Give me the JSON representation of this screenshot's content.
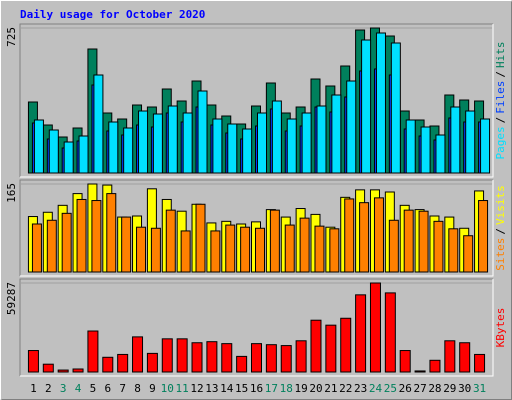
{
  "chart_data": [
    {
      "type": "bar",
      "title": "Daily usage for October 2020",
      "series": [
        {
          "name": "Hits",
          "color": "#00805c",
          "values": [
            355,
            240,
            180,
            225,
            620,
            300,
            270,
            340,
            330,
            420,
            360,
            460,
            340,
            285,
            245,
            335,
            450,
            300,
            330,
            470,
            435,
            535,
            715,
            725,
            685,
            310,
            265,
            235,
            390,
            365,
            360
          ]
        },
        {
          "name": "Files",
          "color": "#0040ff",
          "values": [
            250,
            170,
            125,
            160,
            440,
            210,
            190,
            240,
            230,
            300,
            255,
            330,
            240,
            200,
            170,
            235,
            320,
            210,
            235,
            330,
            305,
            380,
            510,
            520,
            490,
            220,
            185,
            165,
            275,
            255,
            255
          ]
        },
        {
          "name": "Pages",
          "color": "#00e0ff",
          "values": [
            265,
            215,
            155,
            185,
            490,
            255,
            225,
            310,
            295,
            335,
            300,
            410,
            270,
            245,
            220,
            300,
            360,
            270,
            300,
            335,
            390,
            460,
            665,
            700,
            650,
            265,
            230,
            190,
            330,
            310,
            270
          ]
        }
      ],
      "legend_separator": "/",
      "ylim": [
        0,
        725
      ],
      "yticks": [
        725
      ]
    },
    {
      "type": "bar",
      "series": [
        {
          "name": "Visits",
          "color": "#ffff00",
          "values": [
            104,
            112,
            125,
            147,
            165,
            163,
            103,
            105,
            156,
            136,
            114,
            127,
            92,
            95,
            90,
            94,
            117,
            103,
            119,
            108,
            84,
            140,
            154,
            154,
            150,
            125,
            117,
            105,
            103,
            82,
            152
          ]
        },
        {
          "name": "Sites",
          "color": "#ff8000",
          "values": [
            90,
            97,
            110,
            136,
            134,
            147,
            103,
            84,
            82,
            116,
            77,
            127,
            77,
            88,
            84,
            82,
            116,
            88,
            101,
            86,
            81,
            137,
            130,
            139,
            97,
            116,
            114,
            95,
            81,
            68,
            134
          ]
        }
      ],
      "legend_separator": "/",
      "ylim": [
        0,
        165
      ],
      "yticks": [
        165
      ]
    },
    {
      "type": "bar",
      "series": [
        {
          "name": "KBytes",
          "color": "#ff0000",
          "values": [
            14300,
            5200,
            1300,
            2000,
            27300,
            9800,
            11700,
            23400,
            12400,
            22100,
            22100,
            19500,
            20200,
            18900,
            10400,
            18900,
            18200,
            17600,
            20800,
            34500,
            31200,
            35800,
            51400,
            59287,
            52700,
            14300,
            700,
            7800,
            20800,
            19500,
            11700
          ]
        }
      ],
      "ylim": [
        0,
        59287
      ],
      "yticks": [
        59287
      ],
      "categories": [
        "1",
        "2",
        "3",
        "4",
        "5",
        "6",
        "7",
        "8",
        "9",
        "10",
        "11",
        "12",
        "13",
        "14",
        "15",
        "16",
        "17",
        "18",
        "19",
        "20",
        "21",
        "22",
        "23",
        "24",
        "25",
        "26",
        "27",
        "28",
        "29",
        "30",
        "31"
      ],
      "category_colors": [
        "#000000",
        "#000000",
        "#00805c",
        "#00805c",
        "#000000",
        "#000000",
        "#000000",
        "#000000",
        "#000000",
        "#00805c",
        "#00805c",
        "#000000",
        "#000000",
        "#000000",
        "#000000",
        "#000000",
        "#00805c",
        "#00805c",
        "#000000",
        "#000000",
        "#000000",
        "#000000",
        "#000000",
        "#00805c",
        "#00805c",
        "#000000",
        "#000000",
        "#000000",
        "#000000",
        "#000000",
        "#00805c"
      ]
    }
  ]
}
